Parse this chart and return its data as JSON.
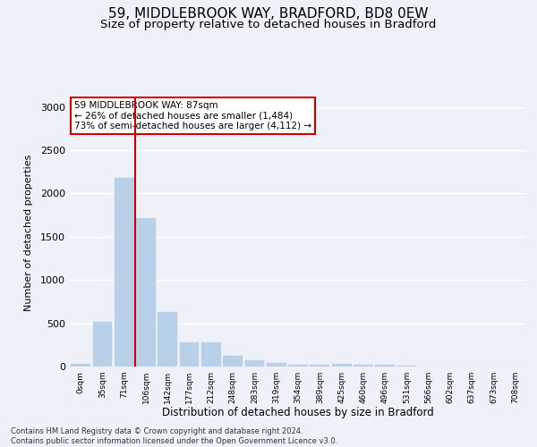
{
  "title1": "59, MIDDLEBROOK WAY, BRADFORD, BD8 0EW",
  "title2": "Size of property relative to detached houses in Bradford",
  "xlabel": "Distribution of detached houses by size in Bradford",
  "ylabel": "Number of detached properties",
  "footnote": "Contains HM Land Registry data © Crown copyright and database right 2024.\nContains public sector information licensed under the Open Government Licence v3.0.",
  "categories": [
    "0sqm",
    "35sqm",
    "71sqm",
    "106sqm",
    "142sqm",
    "177sqm",
    "212sqm",
    "248sqm",
    "283sqm",
    "319sqm",
    "354sqm",
    "389sqm",
    "425sqm",
    "460sqm",
    "496sqm",
    "531sqm",
    "566sqm",
    "602sqm",
    "637sqm",
    "673sqm",
    "708sqm"
  ],
  "values": [
    30,
    520,
    2185,
    1720,
    635,
    280,
    280,
    120,
    70,
    40,
    25,
    25,
    35,
    20,
    20,
    10,
    5,
    5,
    5,
    5,
    5
  ],
  "bar_color": "#b8d0e8",
  "bar_edge_color": "#b8d0e8",
  "vline_x_index": 2,
  "vline_color": "#cc0000",
  "annotation_text": "59 MIDDLEBROOK WAY: 87sqm\n← 26% of detached houses are smaller (1,484)\n73% of semi-detached houses are larger (4,112) →",
  "annotation_box_color": "#ffffff",
  "annotation_box_edge": "#cc0000",
  "ylim": [
    0,
    3100
  ],
  "yticks": [
    0,
    500,
    1000,
    1500,
    2000,
    2500,
    3000
  ],
  "bg_color": "#eef2f8",
  "grid_color": "#ffffff",
  "title1_fontsize": 11,
  "title2_fontsize": 9.5
}
